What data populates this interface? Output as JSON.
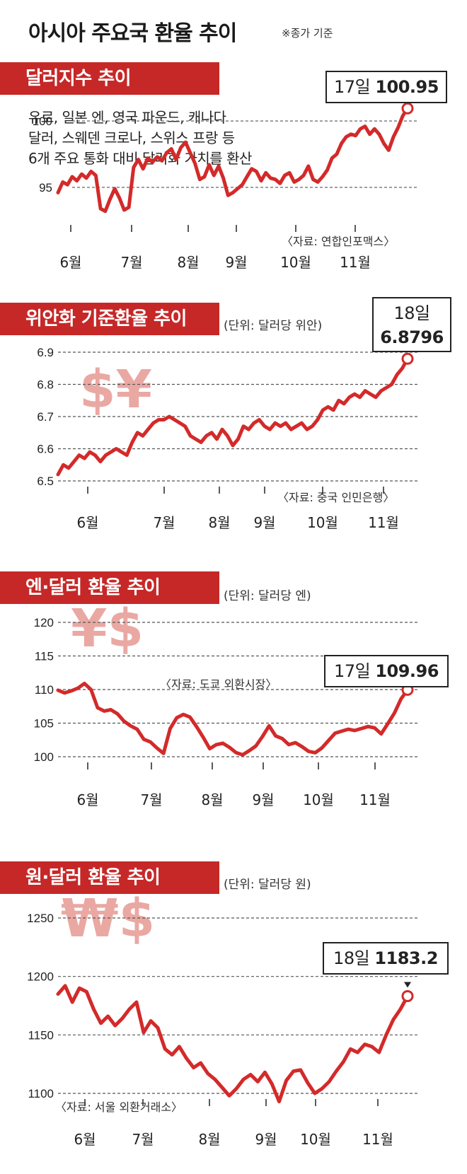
{
  "header": {
    "title": "아시아 주요국 환율 추이",
    "note": "※종가 기준"
  },
  "colors": {
    "accent": "#c62828",
    "line": "#d32a2a",
    "grid": "#555555",
    "watermark": "#e79a94"
  },
  "panels": [
    {
      "banner": "달러지수 추이",
      "unit": "",
      "description": [
        "유로, 일본 엔, 영국 파운드, 캐나다",
        "달러, 스웨덴 크로나, 스위스 프랑 등",
        "6개 주요 통화 대비 달러화 가치를 환산"
      ],
      "source": "〈자료: 연합인포맥스〉",
      "callout_day": "17일",
      "callout_value": "100.95",
      "watermark": ""
    },
    {
      "banner": "위안화 기준환율 추이",
      "unit": "(단위: 달러당 위안)",
      "description": [],
      "source": "〈자료: 중국 인민은행〉",
      "callout_day": "18일",
      "callout_value": "6.8796",
      "watermark": "$¥"
    },
    {
      "banner": "엔·달러 환율 추이",
      "unit": "(단위: 달러당 엔)",
      "description": [],
      "source": "〈자료: 도쿄 외환시장〉",
      "callout_day": "17일",
      "callout_value": "109.96",
      "watermark": "¥$"
    },
    {
      "banner": "원·달러 환율 추이",
      "unit": "(단위: 달러당 원)",
      "description": [],
      "source": "〈자료: 서울 외환거래소〉",
      "callout_day": "18일",
      "callout_value": "1183.2",
      "watermark": "₩$"
    }
  ],
  "chart_data": [
    {
      "type": "line",
      "title": "달러지수 추이",
      "yticks": [
        95,
        100
      ],
      "ylim": [
        92.6,
        102.4
      ],
      "xlabels": [
        "6월",
        "7월",
        "8월",
        "9월",
        "10월",
        "11월"
      ],
      "series": [
        {
          "values": [
            94.6,
            95.4,
            95.2,
            95.8,
            95.5,
            96.0,
            95.7,
            96.2,
            95.9,
            93.4,
            93.2,
            94.1,
            94.9,
            94.2,
            93.3,
            93.5,
            96.5,
            97.1,
            96.4,
            97.2,
            96.9,
            97.3,
            97.0,
            97.6,
            97.9,
            97.1,
            98.0,
            98.4,
            97.6,
            96.8,
            95.6,
            95.8,
            96.7,
            95.9,
            96.6,
            95.7,
            94.4,
            94.6,
            94.9,
            95.2,
            95.8,
            96.4,
            96.2,
            95.5,
            96.1,
            95.7,
            95.6,
            95.3,
            95.9,
            96.1,
            95.4,
            95.6,
            95.9,
            96.6,
            95.6,
            95.4,
            95.8,
            96.3,
            97.2,
            97.5,
            98.3,
            98.8,
            99.0,
            98.9,
            99.4,
            99.6,
            99.0,
            99.4,
            99.0,
            98.3,
            97.8,
            98.8,
            99.5,
            100.4,
            100.95
          ]
        }
      ],
      "last": {
        "label": "17일",
        "value": 100.95
      }
    },
    {
      "type": "line",
      "title": "위안화 기준환율 추이",
      "yticks": [
        6.5,
        6.6,
        6.7,
        6.8,
        6.9
      ],
      "ylim": [
        6.5,
        6.9
      ],
      "xlabels": [
        "6월",
        "7월",
        "8월",
        "9월",
        "10월",
        "11월"
      ],
      "series": [
        {
          "values": [
            6.52,
            6.55,
            6.54,
            6.56,
            6.58,
            6.57,
            6.59,
            6.58,
            6.56,
            6.58,
            6.59,
            6.6,
            6.59,
            6.58,
            6.62,
            6.65,
            6.64,
            6.66,
            6.68,
            6.69,
            6.69,
            6.7,
            6.69,
            6.68,
            6.67,
            6.64,
            6.63,
            6.62,
            6.64,
            6.65,
            6.63,
            6.66,
            6.64,
            6.61,
            6.63,
            6.67,
            6.66,
            6.68,
            6.69,
            6.67,
            6.66,
            6.68,
            6.67,
            6.68,
            6.66,
            6.67,
            6.68,
            6.66,
            6.67,
            6.69,
            6.72,
            6.73,
            6.72,
            6.75,
            6.74,
            6.76,
            6.77,
            6.76,
            6.78,
            6.77,
            6.76,
            6.78,
            6.79,
            6.8,
            6.83,
            6.85,
            6.8796
          ]
        }
      ],
      "last": {
        "label": "18일",
        "value": 6.8796
      }
    },
    {
      "type": "line",
      "title": "엔·달러 환율 추이",
      "yticks": [
        100,
        105,
        110,
        115,
        120
      ],
      "ylim": [
        100,
        120
      ],
      "xlabels": [
        "6월",
        "7월",
        "8월",
        "9월",
        "10월",
        "11월"
      ],
      "series": [
        {
          "values": [
            109.9,
            109.5,
            109.8,
            110.2,
            110.9,
            110.0,
            107.3,
            106.8,
            107.0,
            106.4,
            105.3,
            104.6,
            104.1,
            102.6,
            102.2,
            101.3,
            100.5,
            104.2,
            105.8,
            106.3,
            105.9,
            104.5,
            102.9,
            101.2,
            101.8,
            102.0,
            101.4,
            100.6,
            100.3,
            100.9,
            101.6,
            103.0,
            104.6,
            103.1,
            102.7,
            101.8,
            102.1,
            101.5,
            100.8,
            100.6,
            101.3,
            102.4,
            103.5,
            103.8,
            104.1,
            103.9,
            104.2,
            104.5,
            104.3,
            103.4,
            104.9,
            106.5,
            108.6,
            109.96
          ]
        }
      ],
      "last": {
        "label": "17일",
        "value": 109.96
      }
    },
    {
      "type": "line",
      "title": "원·달러 환율 추이",
      "yticks": [
        1100,
        1150,
        1200,
        1250
      ],
      "ylim": [
        1100,
        1250
      ],
      "xlabels": [
        "6월",
        "7월",
        "8월",
        "9월",
        "10월",
        "11월"
      ],
      "series": [
        {
          "values": [
            1185,
            1192,
            1178,
            1190,
            1187,
            1172,
            1160,
            1166,
            1158,
            1164,
            1172,
            1178,
            1152,
            1162,
            1156,
            1138,
            1133,
            1140,
            1130,
            1122,
            1126,
            1117,
            1112,
            1105,
            1098,
            1104,
            1112,
            1116,
            1110,
            1118,
            1108,
            1093,
            1111,
            1119,
            1120,
            1109,
            1100,
            1104,
            1110,
            1119,
            1127,
            1138,
            1135,
            1142,
            1140,
            1135,
            1150,
            1163,
            1172,
            1183.2
          ]
        }
      ],
      "last": {
        "label": "18일",
        "value": 1183.2
      }
    }
  ]
}
